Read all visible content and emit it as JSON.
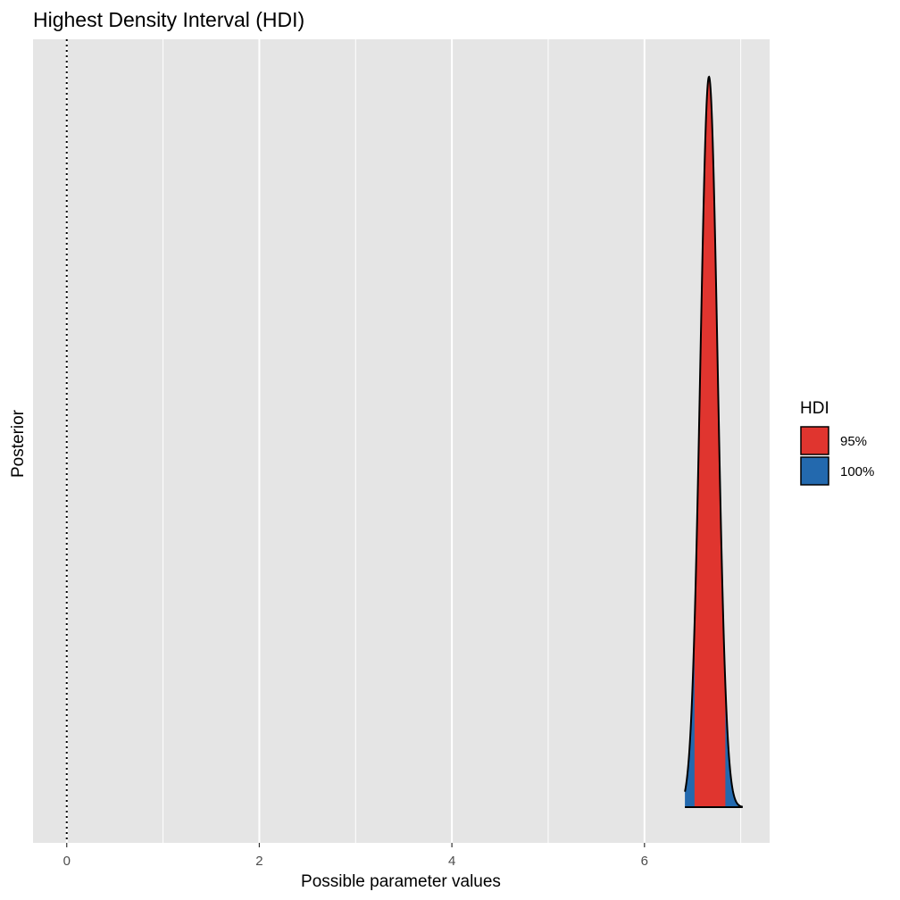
{
  "chart_data": {
    "type": "area",
    "title": "Highest Density Interval (HDI)",
    "xlabel": "Possible parameter values",
    "ylabel": "Posterior",
    "xlim": [
      -0.35,
      7.3
    ],
    "x_ticks": [
      0,
      2,
      4,
      6
    ],
    "x_tick_labels": [
      "0",
      "2",
      "4",
      "6"
    ],
    "grid": true,
    "reference_line": {
      "x": 0,
      "style": "dotted"
    },
    "distribution": {
      "mean": 6.67,
      "sd": 0.09,
      "min": 6.42,
      "max": 7.02
    },
    "series": [
      {
        "name": "95%",
        "color": "#E0352F",
        "x_range": [
          6.52,
          6.84
        ]
      },
      {
        "name": "100%",
        "color": "#2369AE",
        "x_range": [
          6.42,
          7.02
        ]
      }
    ],
    "legend": {
      "title": "HDI",
      "position": "right",
      "entries": [
        {
          "label": "95%",
          "color": "#E0352F"
        },
        {
          "label": "100%",
          "color": "#2369AE"
        }
      ]
    },
    "panel_background": "#E5E5E5",
    "gridline_color": "#FFFFFF",
    "outline_color": "#000000"
  }
}
